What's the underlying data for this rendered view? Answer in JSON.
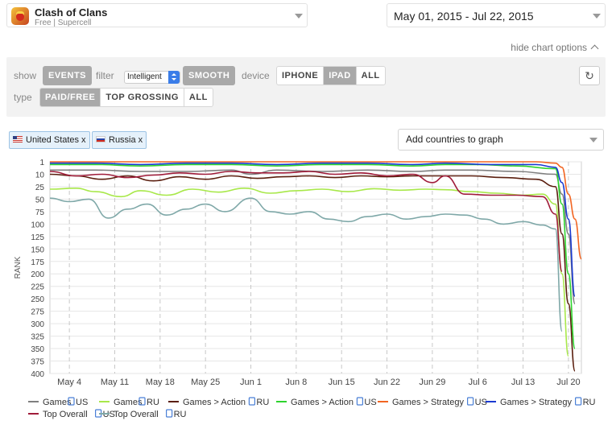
{
  "app": {
    "name": "Clash of Clans",
    "subtitle": "Free | Supercell",
    "icon": "clash-of-clans-app-icon"
  },
  "date_range": "May 01, 2015 - Jul 22, 2015",
  "hide_chart_options": "hide chart options",
  "options": {
    "show_label": "show",
    "events_button": "EVENTS",
    "filter_label": "filter",
    "filter_value": "Intelligent",
    "smooth_button": "SMOOTH",
    "device_label": "device",
    "device_options": [
      "IPHONE",
      "IPAD",
      "ALL"
    ],
    "device_selected": "IPAD",
    "type_label": "type",
    "type_options": [
      "PAID/FREE",
      "TOP GROSSING",
      "ALL"
    ],
    "type_selected": "PAID/FREE",
    "refresh_icon": "refresh-icon"
  },
  "countries": [
    {
      "name": "United States",
      "flag": "us-flag-icon",
      "remove": "x"
    },
    {
      "name": "Russia",
      "flag": "ru-flag-icon",
      "remove": "x"
    }
  ],
  "add_countries_placeholder": "Add countries to graph",
  "chart_data": {
    "type": "line",
    "ylabel": "RANK",
    "y_inverted": true,
    "ylim": [
      1,
      400
    ],
    "yticks": [
      1,
      10,
      25,
      50,
      75,
      100,
      125,
      150,
      175,
      200,
      225,
      250,
      275,
      300,
      325,
      350,
      375,
      400
    ],
    "x_range": [
      "2015-05-01",
      "2015-07-22"
    ],
    "xtick_labels": [
      "May 4",
      "May 11",
      "May 18",
      "May 25",
      "Jun 1",
      "Jun 8",
      "Jun 15",
      "Jun 22",
      "Jun 29",
      "Jul 6",
      "Jul 13",
      "Jul 20"
    ],
    "xtick_dates": [
      "2015-05-04",
      "2015-05-11",
      "2015-05-18",
      "2015-05-25",
      "2015-06-01",
      "2015-06-08",
      "2015-06-15",
      "2015-06-22",
      "2015-06-29",
      "2015-07-06",
      "2015-07-13",
      "2015-07-20"
    ],
    "grid": "horizontal",
    "legend_position": "bottom",
    "series": [
      {
        "name": "Games",
        "device_icon": "ipad-icon",
        "country": "US",
        "color": "#7f7f7f",
        "points": [
          [
            "2015-05-01",
            7
          ],
          [
            "2015-05-08",
            7
          ],
          [
            "2015-05-15",
            8
          ],
          [
            "2015-05-22",
            8
          ],
          [
            "2015-05-29",
            7
          ],
          [
            "2015-06-01",
            10
          ],
          [
            "2015-06-05",
            7
          ],
          [
            "2015-06-12",
            8
          ],
          [
            "2015-06-19",
            7
          ],
          [
            "2015-06-26",
            8
          ],
          [
            "2015-07-01",
            7
          ],
          [
            "2015-07-05",
            7
          ],
          [
            "2015-07-12",
            8
          ],
          [
            "2015-07-18",
            10
          ],
          [
            "2015-07-19",
            40
          ],
          [
            "2015-07-20",
            120
          ],
          [
            "2015-07-21",
            260
          ]
        ]
      },
      {
        "name": "Games",
        "device_icon": "ipad-icon",
        "country": "RU",
        "color": "#a8e84a",
        "points": [
          [
            "2015-05-01",
            30
          ],
          [
            "2015-05-05",
            28
          ],
          [
            "2015-05-08",
            35
          ],
          [
            "2015-05-12",
            45
          ],
          [
            "2015-05-15",
            33
          ],
          [
            "2015-05-19",
            42
          ],
          [
            "2015-05-23",
            30
          ],
          [
            "2015-05-27",
            36
          ],
          [
            "2015-05-31",
            28
          ],
          [
            "2015-06-04",
            38
          ],
          [
            "2015-06-08",
            33
          ],
          [
            "2015-06-12",
            30
          ],
          [
            "2015-06-16",
            35
          ],
          [
            "2015-06-20",
            29
          ],
          [
            "2015-06-24",
            32
          ],
          [
            "2015-06-28",
            30
          ],
          [
            "2015-07-01",
            31
          ],
          [
            "2015-07-05",
            35
          ],
          [
            "2015-07-09",
            38
          ],
          [
            "2015-07-13",
            42
          ],
          [
            "2015-07-16",
            40
          ],
          [
            "2015-07-18",
            60
          ],
          [
            "2015-07-19",
            200
          ],
          [
            "2015-07-20",
            365
          ]
        ]
      },
      {
        "name": "Games > Action",
        "device_icon": "ipad-icon",
        "country": "RU",
        "color": "#5a1e0e",
        "points": [
          [
            "2015-05-01",
            10
          ],
          [
            "2015-05-05",
            12
          ],
          [
            "2015-05-09",
            16
          ],
          [
            "2015-05-13",
            12
          ],
          [
            "2015-05-17",
            18
          ],
          [
            "2015-05-21",
            13
          ],
          [
            "2015-05-25",
            16
          ],
          [
            "2015-05-29",
            12
          ],
          [
            "2015-06-02",
            15
          ],
          [
            "2015-06-06",
            13
          ],
          [
            "2015-06-10",
            12
          ],
          [
            "2015-06-14",
            14
          ],
          [
            "2015-06-18",
            12
          ],
          [
            "2015-06-22",
            13
          ],
          [
            "2015-06-26",
            12
          ],
          [
            "2015-07-01",
            12
          ],
          [
            "2015-07-05",
            12
          ],
          [
            "2015-07-10",
            14
          ],
          [
            "2015-07-15",
            16
          ],
          [
            "2015-07-18",
            25
          ],
          [
            "2015-07-19",
            120
          ],
          [
            "2015-07-20",
            260
          ],
          [
            "2015-07-21",
            395
          ]
        ]
      },
      {
        "name": "Games > Action",
        "device_icon": "ipad-icon",
        "country": "US",
        "color": "#2ed42e",
        "points": [
          [
            "2015-05-01",
            3
          ],
          [
            "2015-05-08",
            3
          ],
          [
            "2015-05-15",
            4
          ],
          [
            "2015-05-22",
            3
          ],
          [
            "2015-05-29",
            3
          ],
          [
            "2015-06-05",
            4
          ],
          [
            "2015-06-12",
            3
          ],
          [
            "2015-06-19",
            3
          ],
          [
            "2015-06-26",
            4
          ],
          [
            "2015-07-01",
            3
          ],
          [
            "2015-07-06",
            3
          ],
          [
            "2015-07-12",
            4
          ],
          [
            "2015-07-18",
            6
          ],
          [
            "2015-07-19",
            60
          ],
          [
            "2015-07-20",
            200
          ],
          [
            "2015-07-21",
            350
          ]
        ]
      },
      {
        "name": "Games > Strategy",
        "device_icon": "ipad-icon",
        "country": "US",
        "color": "#f26522",
        "points": [
          [
            "2015-05-01",
            1
          ],
          [
            "2015-05-15",
            1
          ],
          [
            "2015-06-01",
            1
          ],
          [
            "2015-06-15",
            1
          ],
          [
            "2015-07-01",
            1
          ],
          [
            "2015-07-15",
            1
          ],
          [
            "2015-07-18",
            2
          ],
          [
            "2015-07-19",
            5
          ],
          [
            "2015-07-20",
            40
          ],
          [
            "2015-07-21",
            90
          ],
          [
            "2015-07-22",
            170
          ]
        ]
      },
      {
        "name": "Games > Strategy",
        "device_icon": "ipad-icon",
        "country": "RU",
        "color": "#1a3ad1",
        "points": [
          [
            "2015-05-01",
            2
          ],
          [
            "2015-05-08",
            2
          ],
          [
            "2015-05-15",
            3
          ],
          [
            "2015-05-22",
            2
          ],
          [
            "2015-05-29",
            2
          ],
          [
            "2015-06-05",
            3
          ],
          [
            "2015-06-12",
            2
          ],
          [
            "2015-06-19",
            2
          ],
          [
            "2015-06-26",
            3
          ],
          [
            "2015-07-01",
            2
          ],
          [
            "2015-07-08",
            3
          ],
          [
            "2015-07-15",
            3
          ],
          [
            "2015-07-18",
            5
          ],
          [
            "2015-07-19",
            20
          ],
          [
            "2015-07-20",
            90
          ],
          [
            "2015-07-21",
            245
          ]
        ]
      },
      {
        "name": "Top Overall",
        "device_icon": "ipad-icon",
        "country": "US",
        "color": "#a01c3a",
        "points": [
          [
            "2015-05-01",
            8
          ],
          [
            "2015-05-05",
            12
          ],
          [
            "2015-05-09",
            10
          ],
          [
            "2015-05-13",
            14
          ],
          [
            "2015-05-17",
            11
          ],
          [
            "2015-05-21",
            9
          ],
          [
            "2015-05-25",
            10
          ],
          [
            "2015-05-29",
            8
          ],
          [
            "2015-06-02",
            9
          ],
          [
            "2015-06-06",
            9
          ],
          [
            "2015-06-10",
            8
          ],
          [
            "2015-06-14",
            10
          ],
          [
            "2015-06-18",
            9
          ],
          [
            "2015-06-22",
            12
          ],
          [
            "2015-06-26",
            10
          ],
          [
            "2015-06-29",
            20
          ],
          [
            "2015-07-01",
            12
          ],
          [
            "2015-07-04",
            40
          ],
          [
            "2015-07-08",
            42
          ],
          [
            "2015-07-12",
            42
          ],
          [
            "2015-07-16",
            45
          ],
          [
            "2015-07-18",
            80
          ],
          [
            "2015-07-19",
            195
          ]
        ]
      },
      {
        "name": "Top Overall",
        "device_icon": "ipad-icon",
        "country": "RU",
        "color": "#7fa8a8",
        "points": [
          [
            "2015-05-01",
            48
          ],
          [
            "2015-05-04",
            55
          ],
          [
            "2015-05-07",
            50
          ],
          [
            "2015-05-10",
            88
          ],
          [
            "2015-05-13",
            70
          ],
          [
            "2015-05-16",
            60
          ],
          [
            "2015-05-19",
            82
          ],
          [
            "2015-05-22",
            70
          ],
          [
            "2015-05-25",
            60
          ],
          [
            "2015-05-28",
            75
          ],
          [
            "2015-06-01",
            48
          ],
          [
            "2015-06-04",
            75
          ],
          [
            "2015-06-07",
            80
          ],
          [
            "2015-06-10",
            75
          ],
          [
            "2015-06-13",
            90
          ],
          [
            "2015-06-16",
            95
          ],
          [
            "2015-06-19",
            85
          ],
          [
            "2015-06-22",
            80
          ],
          [
            "2015-06-25",
            90
          ],
          [
            "2015-06-28",
            85
          ],
          [
            "2015-07-01",
            80
          ],
          [
            "2015-07-04",
            82
          ],
          [
            "2015-07-07",
            90
          ],
          [
            "2015-07-10",
            100
          ],
          [
            "2015-07-13",
            95
          ],
          [
            "2015-07-16",
            102
          ],
          [
            "2015-07-18",
            110
          ],
          [
            "2015-07-19",
            315
          ]
        ]
      }
    ]
  }
}
